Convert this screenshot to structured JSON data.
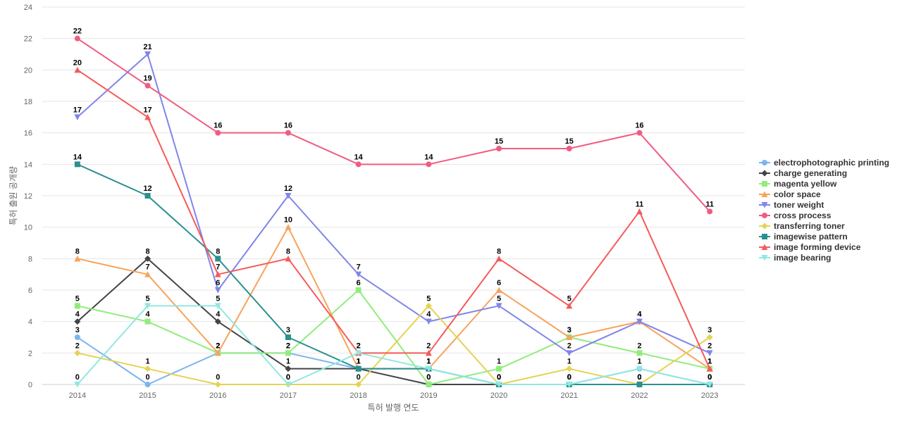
{
  "chart_data": {
    "type": "line",
    "title": "",
    "xlabel": "특허 발행 연도",
    "ylabel": "특허 출원 공개량",
    "ylim": [
      0,
      24
    ],
    "yticks": [
      0,
      2,
      4,
      6,
      8,
      10,
      12,
      14,
      16,
      18,
      20,
      22,
      24
    ],
    "x": [
      "2014",
      "2015",
      "2016",
      "2017",
      "2018",
      "2019",
      "2020",
      "2021",
      "2022",
      "2023"
    ],
    "legend_position": "right",
    "series": [
      {
        "name": "electrophotographic printing",
        "color": "#7cb5ec",
        "marker": "circle",
        "values": [
          3,
          0,
          2,
          2,
          1,
          1,
          0,
          0,
          1,
          0
        ]
      },
      {
        "name": "charge generating",
        "color": "#434348",
        "marker": "diamond",
        "values": [
          4,
          8,
          4,
          1,
          1,
          0,
          0,
          0,
          0,
          0
        ]
      },
      {
        "name": "magenta yellow",
        "color": "#90ed7d",
        "marker": "square",
        "values": [
          5,
          4,
          2,
          2,
          6,
          0,
          1,
          3,
          2,
          1
        ]
      },
      {
        "name": "color space",
        "color": "#f7a35c",
        "marker": "triangle",
        "values": [
          8,
          7,
          2,
          10,
          1,
          1,
          6,
          3,
          4,
          1
        ]
      },
      {
        "name": "toner weight",
        "color": "#8085e9",
        "marker": "triangle-down",
        "values": [
          17,
          21,
          6,
          12,
          7,
          4,
          5,
          2,
          4,
          2
        ]
      },
      {
        "name": "cross process",
        "color": "#f15c80",
        "marker": "circle",
        "values": [
          22,
          19,
          16,
          16,
          14,
          14,
          15,
          15,
          16,
          11
        ]
      },
      {
        "name": "transferring toner",
        "color": "#e4d354",
        "marker": "diamond",
        "values": [
          2,
          1,
          0,
          0,
          0,
          5,
          0,
          1,
          0,
          3
        ]
      },
      {
        "name": "imagewise pattern",
        "color": "#2b908f",
        "marker": "square",
        "values": [
          14,
          12,
          8,
          3,
          1,
          1,
          0,
          0,
          0,
          0
        ]
      },
      {
        "name": "image forming device",
        "color": "#f45b5b",
        "marker": "triangle",
        "values": [
          20,
          17,
          7,
          8,
          2,
          2,
          8,
          5,
          11,
          1
        ]
      },
      {
        "name": "image bearing",
        "color": "#91e8e1",
        "marker": "triangle-down",
        "values": [
          0,
          5,
          5,
          0,
          2,
          1,
          0,
          0,
          1,
          0
        ]
      }
    ]
  }
}
